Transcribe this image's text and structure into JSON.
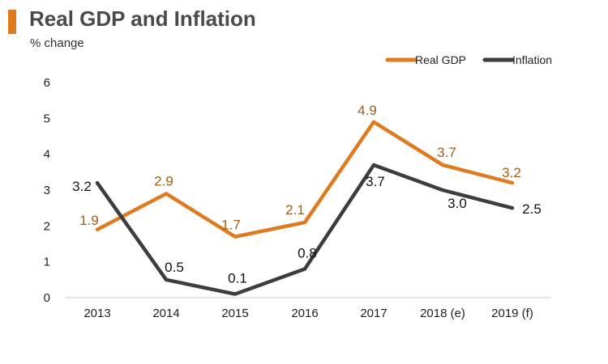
{
  "header": {
    "title": "Real GDP and Inflation",
    "subtitle": "% change"
  },
  "colors": {
    "accent": "#e07a1f",
    "gdp": "#e07a1f",
    "gdp_label": "#a0601a",
    "inflation": "#3d3d3d",
    "inflation_label": "#111111",
    "axis": "#cfcfcf"
  },
  "chart_data": {
    "type": "line",
    "title": "Real GDP and Inflation",
    "subtitle": "% change",
    "categories": [
      "2013",
      "2014",
      "2015",
      "2016",
      "2017",
      "2018 (e)",
      "2019 (f)"
    ],
    "series": [
      {
        "name": "Real GDP",
        "values": [
          1.9,
          2.9,
          1.7,
          2.1,
          4.9,
          3.7,
          3.2
        ],
        "labels": [
          "1.9",
          "2.9",
          "1.7",
          "2.1",
          "4.9",
          "3.7",
          "3.2"
        ]
      },
      {
        "name": "Inflation",
        "values": [
          3.2,
          0.5,
          0.1,
          0.8,
          3.7,
          3.0,
          2.5
        ],
        "labels": [
          "3.2",
          "0.5",
          "0.1",
          "0.8",
          "3.7",
          "3.0",
          "2.5"
        ]
      }
    ],
    "yticks": [
      "0",
      "1",
      "2",
      "3",
      "4",
      "5",
      "6"
    ],
    "ylim": [
      0,
      6
    ],
    "grid": false,
    "legend_position": "top-right"
  }
}
